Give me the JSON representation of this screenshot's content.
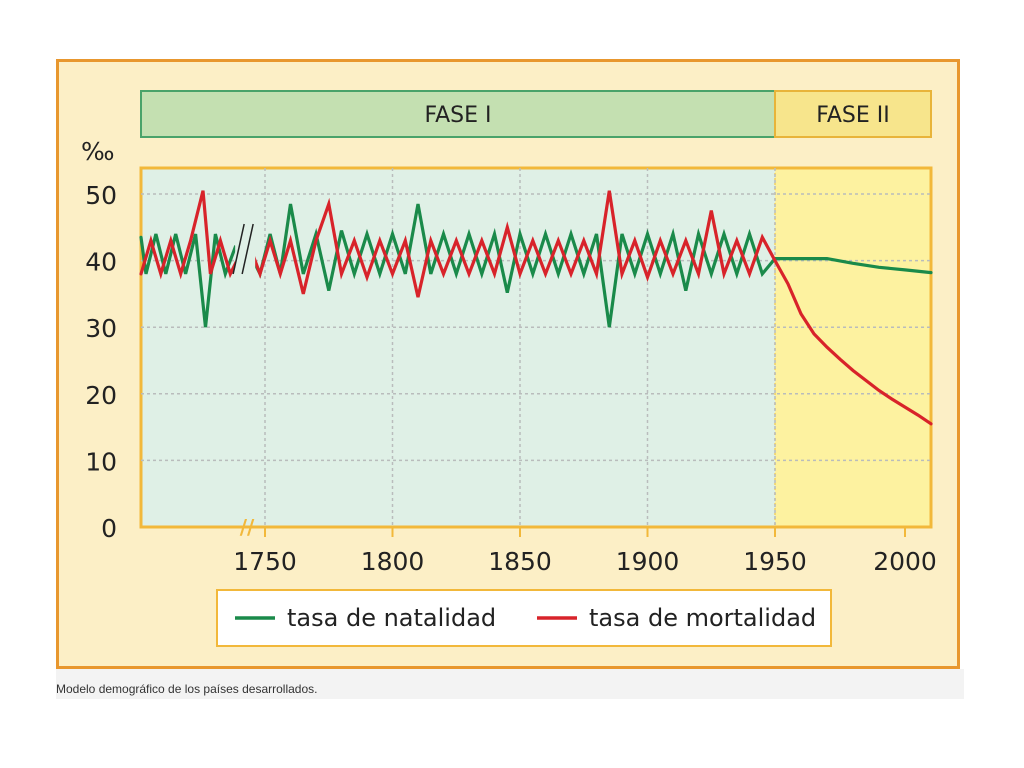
{
  "chart_data": {
    "type": "line",
    "ylabel": "‰",
    "ylim": [
      0,
      52
    ],
    "y_ticks": [
      "0",
      "10",
      "20",
      "30",
      "40",
      "50"
    ],
    "x_ticks": [
      "1750",
      "1800",
      "1850",
      "1900",
      "1950",
      "2000"
    ],
    "axis_break": "//",
    "grid": true,
    "legend_position": "bottom",
    "phases": [
      {
        "label": "FASE I",
        "start": 1700,
        "end": 1950,
        "color": "#c4e0b1",
        "border": "#4aa36a",
        "plot_fill": "#dff0e6"
      },
      {
        "label": "FASE II",
        "start": 1950,
        "end": 2010,
        "color": "#f7e58c",
        "border": "#e8b43a",
        "plot_fill": "#fdf2a0"
      }
    ],
    "series": [
      {
        "name": "tasa de natalidad",
        "color": "#1a8a4a",
        "points": [
          [
            1700,
            43.5
          ],
          [
            1702,
            38
          ],
          [
            1706,
            44
          ],
          [
            1710,
            38
          ],
          [
            1714,
            44
          ],
          [
            1718,
            38
          ],
          [
            1722,
            44
          ],
          [
            1726,
            30
          ],
          [
            1730,
            44
          ],
          [
            1734,
            38
          ],
          [
            1738,
            42
          ],
          [
            1744,
            41
          ],
          [
            1748,
            38
          ],
          [
            1752,
            44
          ],
          [
            1756,
            38
          ],
          [
            1760,
            48.5
          ],
          [
            1765,
            38
          ],
          [
            1770,
            44
          ],
          [
            1775,
            35.5
          ],
          [
            1780,
            44.5
          ],
          [
            1785,
            38
          ],
          [
            1790,
            44
          ],
          [
            1795,
            38
          ],
          [
            1800,
            44
          ],
          [
            1805,
            38
          ],
          [
            1810,
            48.5
          ],
          [
            1815,
            38
          ],
          [
            1820,
            44
          ],
          [
            1825,
            38
          ],
          [
            1830,
            44
          ],
          [
            1835,
            38
          ],
          [
            1840,
            44
          ],
          [
            1845,
            35.2
          ],
          [
            1850,
            44
          ],
          [
            1855,
            38
          ],
          [
            1860,
            44
          ],
          [
            1865,
            38
          ],
          [
            1870,
            44
          ],
          [
            1875,
            38
          ],
          [
            1880,
            44
          ],
          [
            1885,
            30
          ],
          [
            1890,
            44
          ],
          [
            1895,
            38
          ],
          [
            1900,
            44
          ],
          [
            1905,
            38
          ],
          [
            1910,
            44
          ],
          [
            1915,
            35.5
          ],
          [
            1920,
            44
          ],
          [
            1925,
            38
          ],
          [
            1930,
            44
          ],
          [
            1935,
            38
          ],
          [
            1940,
            44
          ],
          [
            1945,
            38
          ],
          [
            1950,
            40.3
          ],
          [
            1970,
            40.3
          ],
          [
            1980,
            39.6
          ],
          [
            1990,
            39
          ],
          [
            2000,
            38.6
          ],
          [
            2010,
            38.2
          ]
        ]
      },
      {
        "name": "tasa de mortalidad",
        "color": "#d8232a",
        "points": [
          [
            1700,
            38
          ],
          [
            1704,
            43
          ],
          [
            1708,
            38
          ],
          [
            1712,
            43
          ],
          [
            1716,
            38
          ],
          [
            1720,
            43
          ],
          [
            1725,
            50.5
          ],
          [
            1728,
            38
          ],
          [
            1732,
            43
          ],
          [
            1736,
            38
          ],
          [
            1740,
            41
          ],
          [
            1744,
            42
          ],
          [
            1748,
            38
          ],
          [
            1752,
            43
          ],
          [
            1756,
            38
          ],
          [
            1760,
            43
          ],
          [
            1765,
            35
          ],
          [
            1770,
            43
          ],
          [
            1775,
            48.5
          ],
          [
            1780,
            38
          ],
          [
            1785,
            43
          ],
          [
            1790,
            37.5
          ],
          [
            1795,
            43
          ],
          [
            1800,
            38
          ],
          [
            1805,
            43
          ],
          [
            1810,
            34.5
          ],
          [
            1815,
            43
          ],
          [
            1820,
            38
          ],
          [
            1825,
            43
          ],
          [
            1830,
            38
          ],
          [
            1835,
            43
          ],
          [
            1840,
            38
          ],
          [
            1845,
            45
          ],
          [
            1850,
            38
          ],
          [
            1855,
            43
          ],
          [
            1860,
            38
          ],
          [
            1865,
            43
          ],
          [
            1870,
            38
          ],
          [
            1875,
            43
          ],
          [
            1880,
            38
          ],
          [
            1885,
            50.5
          ],
          [
            1890,
            38
          ],
          [
            1895,
            43
          ],
          [
            1900,
            37.5
          ],
          [
            1905,
            43
          ],
          [
            1910,
            38
          ],
          [
            1915,
            43
          ],
          [
            1920,
            38
          ],
          [
            1925,
            47.5
          ],
          [
            1930,
            38
          ],
          [
            1935,
            43
          ],
          [
            1940,
            38
          ],
          [
            1945,
            43.5
          ],
          [
            1950,
            40
          ],
          [
            1955,
            36.5
          ],
          [
            1960,
            32
          ],
          [
            1965,
            29
          ],
          [
            1970,
            27
          ],
          [
            1975,
            25.2
          ],
          [
            1980,
            23.5
          ],
          [
            1985,
            22
          ],
          [
            1990,
            20.5
          ],
          [
            1995,
            19.2
          ],
          [
            2000,
            18
          ],
          [
            2005,
            16.8
          ],
          [
            2010,
            15.5
          ]
        ]
      }
    ]
  },
  "caption": "Modelo demográfico de los países desarrollados."
}
